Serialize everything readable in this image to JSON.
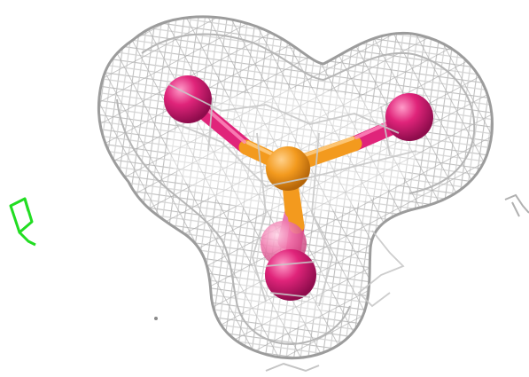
{
  "scene": {
    "background": "#ffffff",
    "mesh_color": "#b9b9b9",
    "mesh_shade": "#8f8f8f",
    "central_atom_color": "#f39a1e",
    "central_atom_shade": "#c9740c",
    "ligand_atom_color": "#e0247a",
    "ligand_atom_shade": "#a8105a",
    "ligand_highlight": "#ff8fc0",
    "side_fragment_color": "#22dd22",
    "bond_colors": [
      "#f39a1e",
      "#e0247a"
    ],
    "ligand_count": 4,
    "icons": [
      "electron-density-mesh",
      "tetrahedral-molecule",
      "side-fragment"
    ]
  }
}
